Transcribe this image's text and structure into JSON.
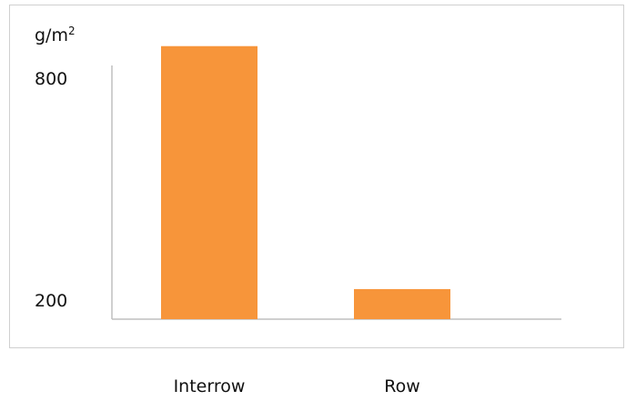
{
  "chart_data": {
    "type": "bar",
    "ylabel": "g/m",
    "ylabel_superscript": "2",
    "categories": [
      "Interrow",
      "Row"
    ],
    "values": [
      840,
      183
    ],
    "y_ticks": [
      {
        "value": 800,
        "label": "800"
      },
      {
        "value": 200,
        "label": "200"
      }
    ],
    "ylim": [
      100,
      870
    ],
    "bar_color": "#F7953A",
    "axis_color": "#bfbfbf",
    "grid": false
  }
}
